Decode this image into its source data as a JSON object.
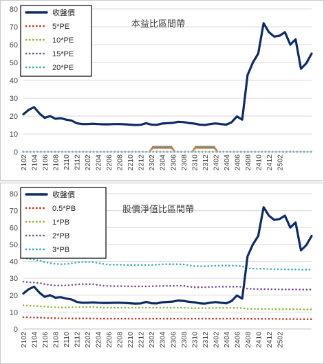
{
  "chart_data": [
    {
      "type": "line",
      "title": "本益比區間帶",
      "xlabel": "",
      "ylabel": "",
      "ylim": [
        0,
        80
      ],
      "y_ticks": [
        0,
        10,
        20,
        30,
        40,
        50,
        60,
        70,
        80
      ],
      "grid": true,
      "legend_position": "top-left",
      "x_tick_labels": [
        "2102",
        "2104",
        "2106",
        "2108",
        "2110",
        "2112",
        "2202",
        "2204",
        "2206",
        "2208",
        "2210",
        "2212",
        "2302",
        "2304",
        "2306",
        "2308",
        "2310",
        "2312",
        "2402",
        "2404",
        "2406",
        "2408",
        "2410",
        "2412",
        "2502"
      ],
      "series": [
        {
          "name": "收盤價",
          "color": "#0d2a66",
          "style": "solid",
          "values": [
            21,
            23.5,
            25,
            21.5,
            19,
            20,
            18.5,
            18.8,
            18,
            17.5,
            16,
            15.5,
            15.5,
            15.7,
            15.5,
            15.4,
            15.4,
            15.5,
            15.5,
            15.4,
            15.2,
            15,
            15.1,
            16,
            15.2,
            15.1,
            15.8,
            16,
            16.2,
            16.8,
            16.6,
            16.1,
            15.8,
            15.2,
            15,
            15.5,
            15.9,
            15.5,
            15.2,
            16.5,
            19.8,
            18,
            43,
            50,
            55,
            72,
            67,
            64.5,
            65,
            67,
            60,
            63,
            46.5,
            49.5,
            55
          ]
        },
        {
          "name": "5*PE",
          "color": "#c0392b",
          "style": "dotted",
          "values": [
            0,
            0,
            0,
            0,
            0,
            0,
            0,
            0,
            0,
            0,
            0,
            0,
            0,
            0,
            0,
            0,
            0,
            0,
            0,
            0,
            0,
            0,
            0,
            0,
            0,
            0,
            0,
            0,
            0,
            0,
            0,
            0,
            0,
            0,
            0,
            0,
            0,
            0,
            0,
            0,
            0,
            0,
            0,
            0,
            0,
            0,
            0,
            0,
            0,
            0,
            0,
            0,
            0,
            0,
            0
          ]
        },
        {
          "name": "10*PE",
          "color": "#8cb83c",
          "style": "dotted",
          "values": [
            0,
            0,
            0,
            0,
            0,
            0,
            0,
            0,
            0,
            0,
            0,
            0,
            0,
            0,
            0,
            0,
            0,
            0,
            0,
            0,
            0,
            0,
            0,
            0,
            0,
            0,
            0,
            0,
            0,
            0,
            0,
            0,
            0,
            0,
            0,
            0,
            0,
            0,
            0,
            0,
            0,
            0,
            0,
            0,
            0,
            0,
            0,
            0,
            0,
            0,
            0,
            0,
            0,
            0,
            0
          ]
        },
        {
          "name": "15*PE",
          "color": "#7a4f9c",
          "style": "dotted",
          "values": [
            0,
            0,
            0,
            0,
            0,
            0,
            0,
            0,
            0,
            0,
            0,
            0,
            0,
            0,
            0,
            0,
            0,
            0,
            0,
            0,
            0,
            0,
            0,
            0,
            0,
            0,
            0,
            0,
            0,
            0,
            0,
            0,
            0,
            0,
            0,
            0,
            0,
            0,
            0,
            0,
            0,
            0,
            0,
            0,
            0,
            0,
            0,
            0,
            0,
            0,
            0,
            0,
            0,
            0,
            0
          ]
        },
        {
          "name": "20*PE",
          "color": "#3aa8c4",
          "style": "dotted",
          "values": [
            0,
            0,
            0,
            0,
            0,
            0,
            0,
            0,
            0,
            0,
            0,
            0,
            0,
            0,
            0,
            0,
            0,
            0,
            0,
            0,
            0,
            0,
            0,
            0,
            0,
            0,
            0,
            0,
            0,
            0,
            0,
            0,
            0,
            0,
            0,
            0,
            0,
            0,
            0,
            0,
            0,
            0,
            0,
            0,
            0,
            0,
            0,
            0,
            0,
            0,
            0,
            0,
            0,
            0,
            0
          ]
        }
      ],
      "annotations": [
        {
          "kind": "small-dotted-bumps",
          "series_colors": [
            "#c0392b",
            "#8cb83c",
            "#7a4f9c",
            "#3aa8c4",
            "#e08a3c"
          ],
          "approx_range": [
            "2302",
            "2306"
          ],
          "approx_value": 2.5
        },
        {
          "kind": "small-dotted-bumps",
          "series_colors": [
            "#c0392b",
            "#8cb83c",
            "#7a4f9c",
            "#3aa8c4",
            "#e08a3c"
          ],
          "approx_range": [
            "2310",
            "2402"
          ],
          "approx_value": 2.5
        }
      ]
    },
    {
      "type": "line",
      "title": "股價淨值比區間帶",
      "xlabel": "",
      "ylabel": "",
      "ylim": [
        0,
        80
      ],
      "y_ticks": [
        0,
        10,
        20,
        30,
        40,
        50,
        60,
        70,
        80
      ],
      "grid": true,
      "legend_position": "top-left",
      "x_tick_labels": [
        "2102",
        "2104",
        "2106",
        "2108",
        "2110",
        "2112",
        "2202",
        "2204",
        "2206",
        "2208",
        "2210",
        "2212",
        "2302",
        "2304",
        "2306",
        "2308",
        "2310",
        "2312",
        "2402",
        "2404",
        "2406",
        "2408",
        "2410",
        "2412",
        "2502"
      ],
      "series": [
        {
          "name": "收盤價",
          "color": "#0d2a66",
          "style": "solid",
          "values": [
            21,
            23.5,
            25,
            21.5,
            19,
            20,
            18.5,
            18.8,
            18,
            17.5,
            16,
            15.5,
            15.5,
            15.7,
            15.5,
            15.4,
            15.4,
            15.5,
            15.5,
            15.4,
            15.2,
            15,
            15.1,
            16,
            15.2,
            15.1,
            15.8,
            16,
            16.2,
            16.8,
            16.6,
            16.1,
            15.8,
            15.2,
            15,
            15.5,
            15.9,
            15.5,
            15.2,
            16.5,
            19.8,
            18,
            43,
            50,
            55,
            72,
            67,
            64.5,
            65,
            67,
            60,
            63,
            46.5,
            49.5,
            55
          ]
        },
        {
          "name": "0.5*PB",
          "color": "#c0392b",
          "style": "dotted",
          "values": [
            7,
            6.9,
            6.8,
            6.7,
            6.6,
            6.5,
            6.4,
            6.3,
            6.3,
            6.2,
            6.2,
            6.2,
            6.2,
            6.2,
            6.1,
            6.1,
            6.1,
            6.1,
            6.1,
            6.1,
            6.1,
            6.1,
            6.1,
            6.1,
            6.1,
            6.1,
            6.1,
            6.1,
            6.1,
            6.1,
            6.1,
            6.1,
            6.1,
            6.1,
            6.1,
            6.1,
            6.1,
            6.1,
            6.1,
            6.1,
            6.1,
            6.1,
            6.0,
            6.0,
            6.0,
            6.0,
            6.0,
            6.0,
            5.9,
            5.9,
            5.9,
            5.9,
            5.8,
            5.8,
            5.8
          ]
        },
        {
          "name": "1*PB",
          "color": "#8cb83c",
          "style": "dotted",
          "values": [
            14,
            13.8,
            13.6,
            13.4,
            13.2,
            13,
            12.8,
            12.7,
            12.7,
            12.8,
            12.9,
            13,
            13,
            13,
            12.8,
            12.6,
            12.6,
            12.6,
            12.6,
            12.6,
            12.6,
            12.6,
            12.6,
            12.6,
            12.6,
            12.6,
            12.6,
            12.6,
            12.6,
            12.6,
            12.6,
            12.4,
            12.3,
            12.3,
            12.3,
            12.4,
            12.5,
            12.5,
            12.5,
            12.5,
            12.5,
            12.4,
            11.9,
            11.8,
            11.8,
            11.8,
            11.8,
            11.7,
            11.7,
            11.7,
            11.7,
            11.7,
            11.6,
            11.6,
            11.6
          ]
        },
        {
          "name": "2*PB",
          "color": "#7a4f9c",
          "style": "dotted",
          "values": [
            28,
            27.6,
            27.4,
            27.2,
            26.5,
            26,
            25.7,
            25.7,
            25.8,
            26,
            26.3,
            26.5,
            26.5,
            26.5,
            26,
            25.6,
            25.4,
            25.4,
            25.4,
            25.3,
            25.2,
            25.2,
            25.2,
            25.2,
            25.3,
            25.4,
            25.5,
            25.5,
            25.5,
            25.6,
            25.5,
            25,
            24.7,
            24.7,
            24.7,
            24.8,
            24.9,
            25,
            25,
            25,
            25,
            24.8,
            23.8,
            23.7,
            23.6,
            23.6,
            23.5,
            23.5,
            23.4,
            23.4,
            23.4,
            23.4,
            23.3,
            23.3,
            23.3
          ]
        },
        {
          "name": "3*PB",
          "color": "#3aa8c4",
          "style": "dotted",
          "values": [
            42,
            41.5,
            41,
            40.5,
            39.5,
            39,
            38.5,
            38.3,
            38.4,
            38.8,
            39.3,
            39.6,
            39.6,
            39.5,
            39,
            38.5,
            38,
            38,
            38,
            37.9,
            37.8,
            37.8,
            37.8,
            37.8,
            37.9,
            38,
            38.2,
            38.3,
            38.3,
            38.3,
            38.2,
            37.6,
            37.2,
            37.1,
            37.1,
            37.2,
            37.4,
            37.5,
            37.5,
            37.5,
            37.4,
            37.1,
            35.8,
            35.7,
            35.6,
            35.6,
            35.5,
            35.4,
            35.3,
            35.3,
            35.2,
            35.2,
            35.1,
            35.1,
            35.1
          ]
        }
      ]
    }
  ]
}
